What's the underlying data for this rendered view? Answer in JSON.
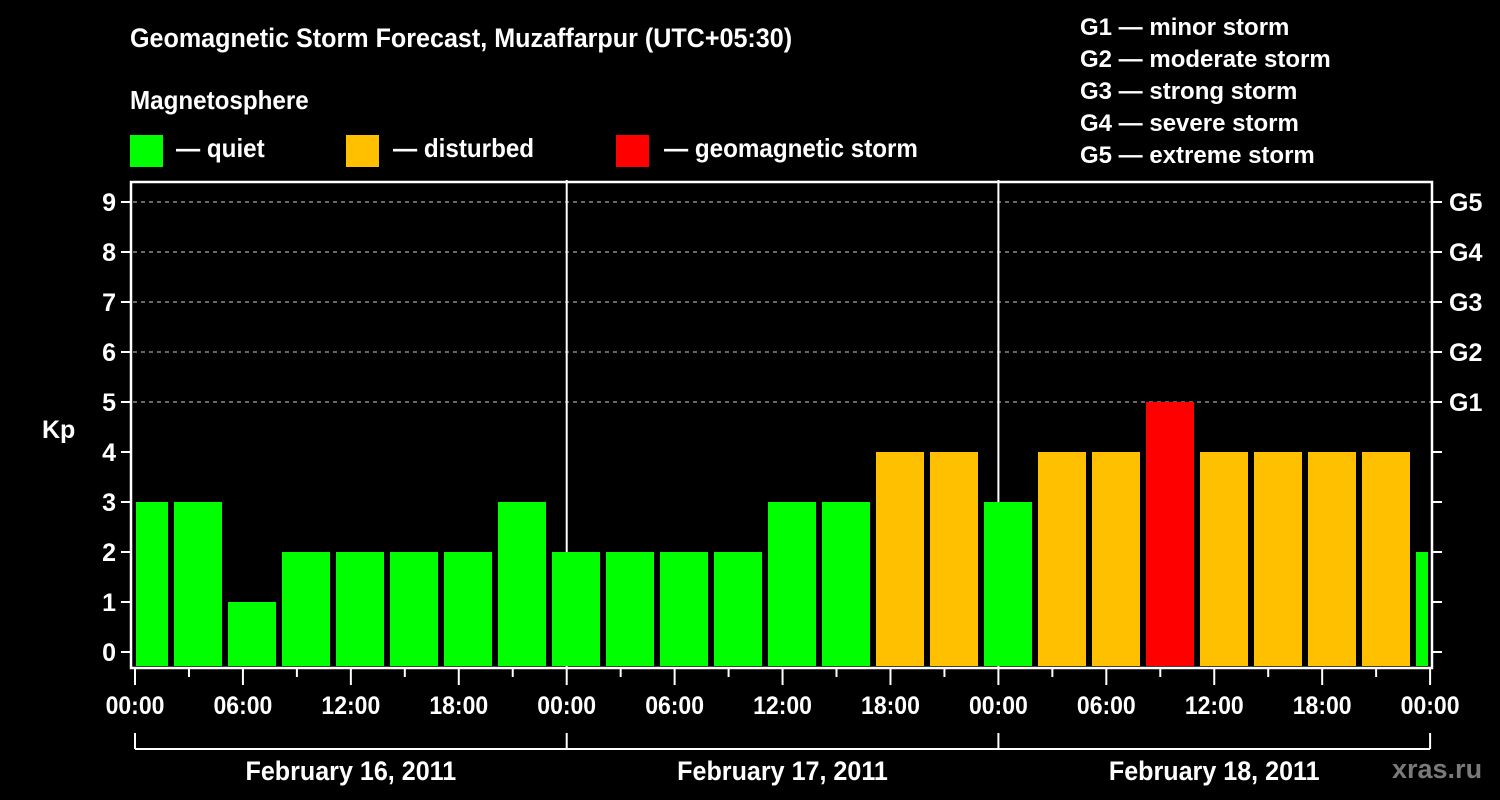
{
  "header": {
    "title": "Geomagnetic Storm Forecast, Muzaffarpur (UTC+05:30)",
    "subtitle": "Magnetosphere"
  },
  "legend": [
    {
      "label": "— quiet",
      "color": "#00ff00"
    },
    {
      "label": "— disturbed",
      "color": "#ffc000"
    },
    {
      "label": "— geomagnetic storm",
      "color": "#ff0000"
    }
  ],
  "g_scale_legend": [
    "G1 — minor storm",
    "G2 — moderate storm",
    "G3 — strong storm",
    "G4 — severe storm",
    "G5 — extreme storm"
  ],
  "watermark": "xras.ru",
  "chart_data": {
    "type": "bar",
    "title": "Geomagnetic Storm Forecast, Muzaffarpur (UTC+05:30)",
    "xlabel": "",
    "ylabel": "Kp",
    "ylim": [
      0,
      9
    ],
    "yticks": [
      0,
      1,
      2,
      3,
      4,
      5,
      6,
      7,
      8,
      9
    ],
    "right_axis_labels": [
      {
        "kp": 5,
        "label": "G1"
      },
      {
        "kp": 6,
        "label": "G2"
      },
      {
        "kp": 7,
        "label": "G3"
      },
      {
        "kp": 8,
        "label": "G4"
      },
      {
        "kp": 9,
        "label": "G5"
      }
    ],
    "grid": "horizontal dashed at Kp 5-9",
    "xtick_labels": [
      "00:00",
      "06:00",
      "12:00",
      "18:00",
      "00:00",
      "06:00",
      "12:00",
      "18:00",
      "00:00",
      "06:00",
      "12:00",
      "18:00",
      "00:00"
    ],
    "days": [
      "February 16, 2011",
      "February 17, 2011",
      "February 18, 2011"
    ],
    "interval_hours": 3,
    "categories": [
      "Feb16 ~00:00",
      "Feb16 ~02:00",
      "Feb16 ~05:00",
      "Feb16 ~08:00",
      "Feb16 ~11:00",
      "Feb16 ~14:00",
      "Feb16 ~17:00",
      "Feb16 ~20:00",
      "Feb16 ~23:00",
      "Feb17 ~02:00",
      "Feb17 ~05:00",
      "Feb17 ~08:00",
      "Feb17 ~11:00",
      "Feb17 ~14:00",
      "Feb17 ~17:00",
      "Feb17 ~20:00",
      "Feb17 ~23:00",
      "Feb18 ~02:00",
      "Feb18 ~05:00",
      "Feb18 ~08:00",
      "Feb18 ~11:00",
      "Feb18 ~14:00",
      "Feb18 ~17:00",
      "Feb18 ~20:00",
      "Feb18 ~23:00"
    ],
    "values": [
      3,
      3,
      1,
      2,
      2,
      2,
      2,
      3,
      2,
      2,
      2,
      2,
      3,
      3,
      4,
      4,
      3,
      4,
      4,
      5,
      4,
      4,
      4,
      4,
      2
    ],
    "status": [
      "quiet",
      "quiet",
      "quiet",
      "quiet",
      "quiet",
      "quiet",
      "quiet",
      "quiet",
      "quiet",
      "quiet",
      "quiet",
      "quiet",
      "quiet",
      "quiet",
      "disturbed",
      "disturbed",
      "quiet",
      "disturbed",
      "disturbed",
      "storm",
      "disturbed",
      "disturbed",
      "disturbed",
      "disturbed",
      "quiet"
    ],
    "colors": {
      "quiet": "#00ff00",
      "disturbed": "#ffc000",
      "storm": "#ff0000"
    }
  }
}
